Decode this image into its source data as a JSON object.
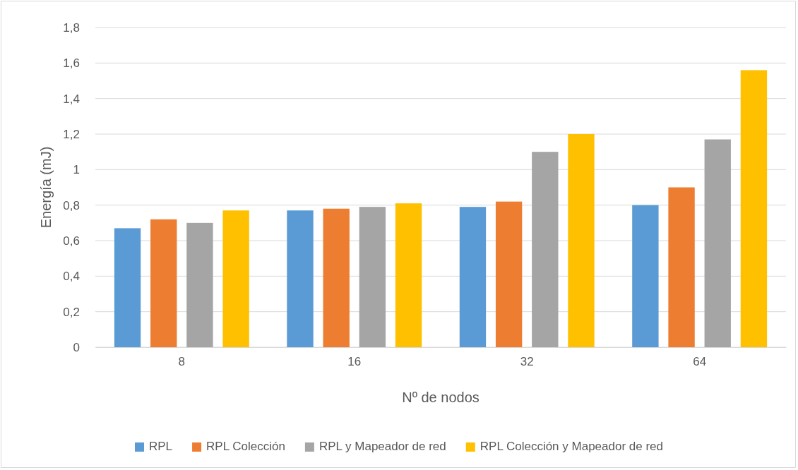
{
  "chart_data": {
    "type": "bar",
    "xlabel": "Nº de nodos",
    "ylabel": "Energía (mJ)",
    "categories": [
      "8",
      "16",
      "32",
      "64"
    ],
    "series": [
      {
        "name": "RPL",
        "color": "#5b9bd5",
        "values": [
          0.67,
          0.77,
          0.79,
          0.8
        ]
      },
      {
        "name": "RPL Colección",
        "color": "#ed7d31",
        "values": [
          0.72,
          0.78,
          0.82,
          0.9
        ]
      },
      {
        "name": "RPL y Mapeador de red",
        "color": "#a5a5a5",
        "values": [
          0.7,
          0.79,
          1.1,
          1.17
        ]
      },
      {
        "name": "RPL Colección y Mapeador de red",
        "color": "#ffc000",
        "values": [
          0.77,
          0.81,
          1.2,
          1.56
        ]
      }
    ],
    "ylim": [
      0,
      1.8
    ],
    "yticks": [
      0,
      {
        "value": 0.2,
        "label": "0,2"
      },
      {
        "value": 0.4,
        "label": "0,4"
      },
      {
        "value": 0.6,
        "label": "0,6"
      },
      {
        "value": 0.8,
        "label": "0,8"
      },
      1,
      {
        "value": 1.2,
        "label": "1,2"
      },
      {
        "value": 1.4,
        "label": "1,4"
      },
      {
        "value": 1.6,
        "label": "1,6"
      },
      {
        "value": 1.8,
        "label": "1,8"
      }
    ],
    "grid": "y",
    "legend": "bottom"
  }
}
